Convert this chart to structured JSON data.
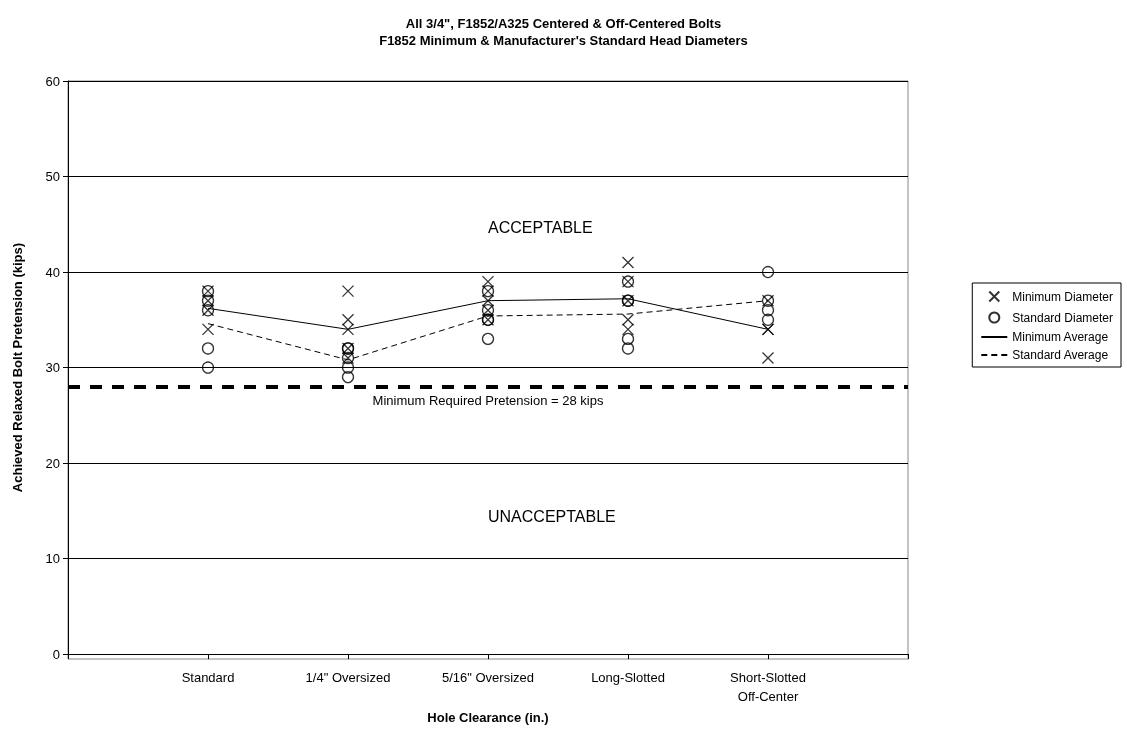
{
  "chart_data": {
    "type": "scatter",
    "title": "All 3/4\", F1852/A325 Centered & Off-Centered Bolts",
    "subtitle": "F1852 Minimum & Manufacturer's Standard Head Diameters",
    "xlabel": "Hole Clearance (in.)",
    "ylabel": "Achieved Relaxed Bolt Pretension (kips)",
    "categories": [
      null,
      "Standard",
      "1/4\" Oversized",
      "5/16\" Oversized",
      "Long-Slotted",
      "Short-Slotted\nOff-Center",
      null
    ],
    "series": [
      {
        "name": "Minimum Diameter",
        "marker": "cross",
        "color": "#000000",
        "x": [
          "Standard",
          "Standard",
          "Standard",
          "Standard",
          "1/4\" Oversized",
          "1/4\" Oversized",
          "1/4\" Oversized",
          "1/4\" Oversized",
          "1/4\" Oversized",
          "5/16\" Oversized",
          "5/16\" Oversized",
          "5/16\" Oversized",
          "5/16\" Oversized",
          "5/16\" Oversized",
          "Long-Slotted",
          "Long-Slotted",
          "Long-Slotted",
          "Long-Slotted",
          "Long-Slotted",
          "Short-Slotted\nOff-Center",
          "Short-Slotted\nOff-Center",
          "Short-Slotted\nOff-Center",
          "Short-Slotted\nOff-Center"
        ],
        "values": [
          38,
          37,
          36,
          34,
          38,
          35,
          34,
          32,
          31,
          39,
          38,
          37,
          36,
          35,
          41,
          39,
          37,
          35,
          34,
          37,
          34,
          34,
          31
        ]
      },
      {
        "name": "Standard Diameter",
        "marker": "circle",
        "color": "#000000",
        "x": [
          "Standard",
          "Standard",
          "Standard",
          "Standard",
          "Standard",
          "1/4\" Oversized",
          "1/4\" Oversized",
          "1/4\" Oversized",
          "1/4\" Oversized",
          "1/4\" Oversized",
          "5/16\" Oversized",
          "5/16\" Oversized",
          "5/16\" Oversized",
          "5/16\" Oversized",
          "5/16\" Oversized",
          "Long-Slotted",
          "Long-Slotted",
          "Long-Slotted",
          "Long-Slotted",
          "Long-Slotted",
          "Short-Slotted\nOff-Center",
          "Short-Slotted\nOff-Center",
          "Short-Slotted\nOff-Center",
          "Short-Slotted\nOff-Center"
        ],
        "values": [
          38,
          37,
          36,
          32,
          30,
          32,
          32,
          31,
          30,
          29,
          38,
          36,
          35,
          35,
          33,
          39,
          37,
          37,
          33,
          32,
          40,
          37,
          36,
          35
        ]
      },
      {
        "name": "Minimum Average",
        "type": "line",
        "marker": "none",
        "line_style": "solid",
        "color": "#000000",
        "values": [
          null,
          36.2,
          34,
          37,
          37.2,
          34,
          null
        ]
      },
      {
        "name": "Standard Average",
        "type": "line",
        "marker": "none",
        "line_style": "dashed",
        "color": "#000000",
        "values": [
          null,
          34.6,
          30.8,
          35.4,
          35.6,
          37,
          null
        ]
      }
    ],
    "ref_lines": [
      {
        "axis": "y",
        "value": 28,
        "label": "Minimum Required Pretension = 28 kips",
        "color": "#000000",
        "line_style": "dashed"
      }
    ],
    "annotations": [
      "ACCEPTABLE",
      "UNACCEPTABLE"
    ],
    "ylim": [
      0,
      60
    ],
    "yticks": [
      0,
      10,
      20,
      30,
      40,
      50,
      60
    ],
    "grid": "y",
    "legend": "right"
  }
}
